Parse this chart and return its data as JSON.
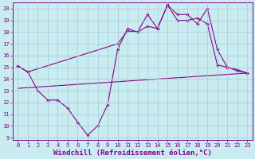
{
  "xlabel": "Windchill (Refroidissement éolien,°C)",
  "background_color": "#c8ecf0",
  "grid_color": "#a8c8d8",
  "line_color": "#880088",
  "xlim": [
    -0.5,
    23.5
  ],
  "ylim": [
    8.8,
    20.5
  ],
  "yticks": [
    9,
    10,
    11,
    12,
    13,
    14,
    15,
    16,
    17,
    18,
    19,
    20
  ],
  "xticks": [
    0,
    1,
    2,
    3,
    4,
    5,
    6,
    7,
    8,
    9,
    10,
    11,
    12,
    13,
    14,
    15,
    16,
    17,
    18,
    19,
    20,
    21,
    22,
    23
  ],
  "line1_x": [
    0,
    1,
    2,
    3,
    4,
    5,
    6,
    7,
    8,
    9,
    10,
    11,
    12,
    13,
    14,
    15,
    16,
    17,
    18,
    19,
    20,
    21,
    22,
    23
  ],
  "line1_y": [
    15.1,
    14.6,
    13.0,
    12.2,
    12.2,
    11.5,
    10.3,
    9.2,
    10.0,
    11.8,
    16.5,
    18.3,
    18.0,
    19.5,
    18.3,
    20.3,
    19.0,
    19.0,
    19.2,
    18.7,
    15.2,
    15.0,
    14.7,
    14.5
  ],
  "line2_x": [
    0,
    1,
    10,
    11,
    12,
    13,
    14,
    15,
    16,
    17,
    18,
    19,
    20,
    21,
    22,
    23
  ],
  "line2_y": [
    15.1,
    14.6,
    17.0,
    18.1,
    18.0,
    18.5,
    18.3,
    20.3,
    19.5,
    19.5,
    18.7,
    20.0,
    16.5,
    15.0,
    14.8,
    14.5
  ],
  "line3_x": [
    0,
    23
  ],
  "line3_y": [
    13.2,
    14.5
  ],
  "marker_size": 1.8,
  "linewidth": 0.8,
  "tick_fontsize": 5.0,
  "xlabel_fontsize": 6.5
}
